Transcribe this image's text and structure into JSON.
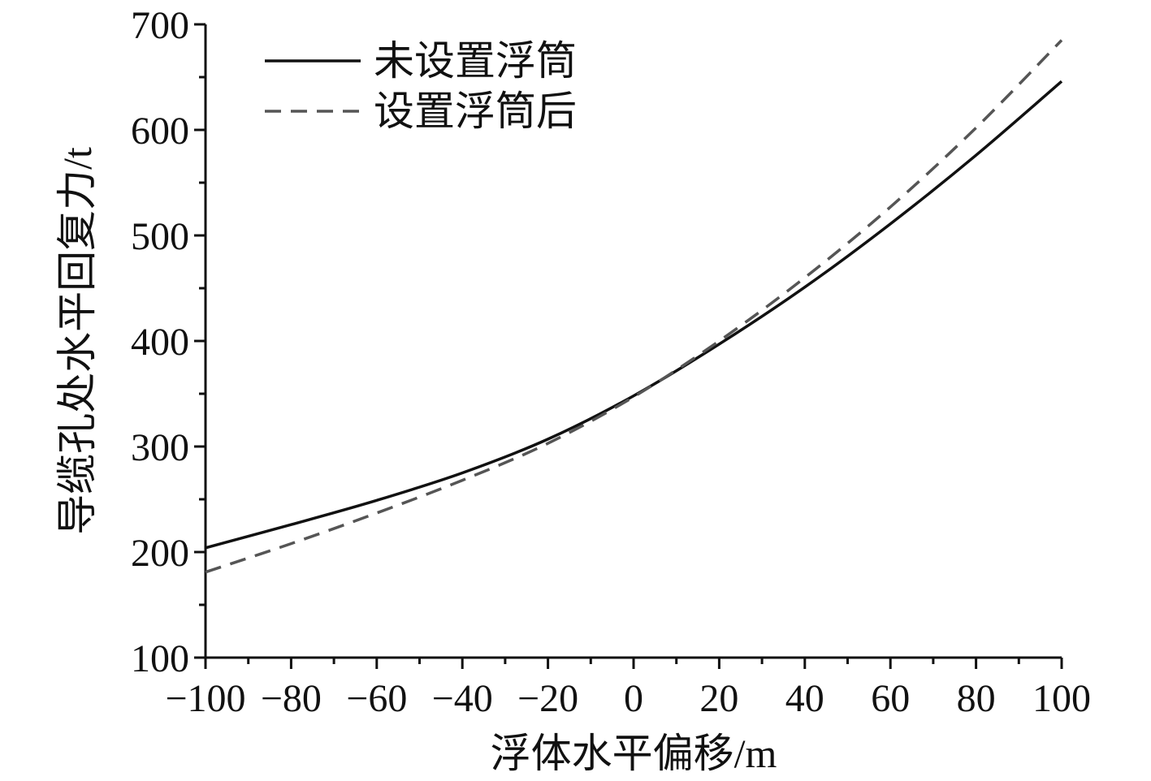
{
  "chart_data": {
    "type": "line",
    "title": "",
    "xlabel": "浮体水平偏移/m",
    "ylabel": "导缆孔处水平回复力/t",
    "xlim": [
      -100,
      100
    ],
    "ylim": [
      100,
      700
    ],
    "x_ticks": [
      -100,
      -80,
      -60,
      -40,
      -20,
      0,
      20,
      40,
      60,
      80,
      100
    ],
    "x_tick_labels": [
      "−100",
      "−80",
      "−60",
      "−40",
      "−20",
      "0",
      "20",
      "40",
      "60",
      "80",
      "100"
    ],
    "y_ticks": [
      100,
      200,
      300,
      400,
      500,
      600,
      700
    ],
    "y_tick_labels": [
      "100",
      "200",
      "300",
      "400",
      "500",
      "600",
      "700"
    ],
    "grid": false,
    "legend_position": "top-left",
    "x": [
      -100,
      -80,
      -60,
      -40,
      -20,
      0,
      20,
      40,
      60,
      80,
      100
    ],
    "series": [
      {
        "name": "未设置浮筒",
        "color": "#111111",
        "dash": "solid",
        "values": [
          204,
          226,
          249,
          275,
          307,
          348,
          397,
          451,
          511,
          576,
          646
        ]
      },
      {
        "name": "设置浮筒后",
        "color": "#555555",
        "dash": "dashed",
        "values": [
          181,
          208,
          237,
          268,
          303,
          347,
          400,
          460,
          527,
          602,
          685
        ]
      }
    ]
  }
}
